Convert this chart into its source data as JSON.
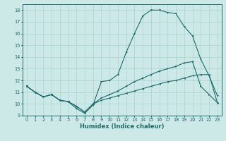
{
  "xlabel": "Humidex (Indice chaleur)",
  "xlim": [
    -0.5,
    23.5
  ],
  "ylim": [
    9,
    18.5
  ],
  "yticks": [
    9,
    10,
    11,
    12,
    13,
    14,
    15,
    16,
    17,
    18
  ],
  "xticks": [
    0,
    1,
    2,
    3,
    4,
    5,
    6,
    7,
    8,
    9,
    10,
    11,
    12,
    13,
    14,
    15,
    16,
    17,
    18,
    19,
    20,
    21,
    22,
    23
  ],
  "bg_color": "#cce9e8",
  "line_color": "#1e6b6b",
  "grid_color": "#aad4d2",
  "line1_x": [
    0,
    1,
    2,
    3,
    4,
    5,
    6,
    7,
    8,
    9,
    10,
    11,
    12,
    13,
    14,
    15,
    16,
    17,
    18,
    19,
    20,
    21,
    22,
    23
  ],
  "line1_y": [
    11.5,
    11.0,
    10.6,
    10.8,
    10.3,
    10.2,
    9.6,
    9.2,
    9.9,
    11.9,
    12.0,
    12.5,
    14.4,
    16.0,
    17.5,
    18.0,
    18.0,
    17.8,
    17.7,
    16.6,
    15.8,
    13.8,
    12.4,
    10.7
  ],
  "line2_x": [
    0,
    1,
    2,
    3,
    4,
    5,
    6,
    7,
    8,
    9,
    10,
    11,
    12,
    13,
    14,
    15,
    16,
    17,
    18,
    19,
    20,
    21,
    22,
    23
  ],
  "line2_y": [
    11.5,
    11.0,
    10.6,
    10.8,
    10.3,
    10.2,
    9.8,
    9.3,
    10.0,
    10.5,
    10.8,
    11.1,
    11.5,
    11.9,
    12.2,
    12.5,
    12.8,
    13.0,
    13.2,
    13.5,
    13.6,
    11.5,
    10.8,
    10.1
  ],
  "line3_x": [
    0,
    1,
    2,
    3,
    4,
    5,
    6,
    7,
    8,
    9,
    10,
    11,
    12,
    13,
    14,
    15,
    16,
    17,
    18,
    19,
    20,
    21,
    22,
    23
  ],
  "line3_y": [
    11.5,
    11.0,
    10.6,
    10.8,
    10.3,
    10.2,
    9.8,
    9.3,
    10.0,
    10.3,
    10.5,
    10.7,
    10.9,
    11.1,
    11.3,
    11.5,
    11.7,
    11.9,
    12.0,
    12.2,
    12.4,
    12.5,
    12.5,
    10.1
  ],
  "xlabel_fontsize": 6.0,
  "tick_fontsize": 4.8,
  "linewidth": 0.8,
  "markersize": 2.0
}
